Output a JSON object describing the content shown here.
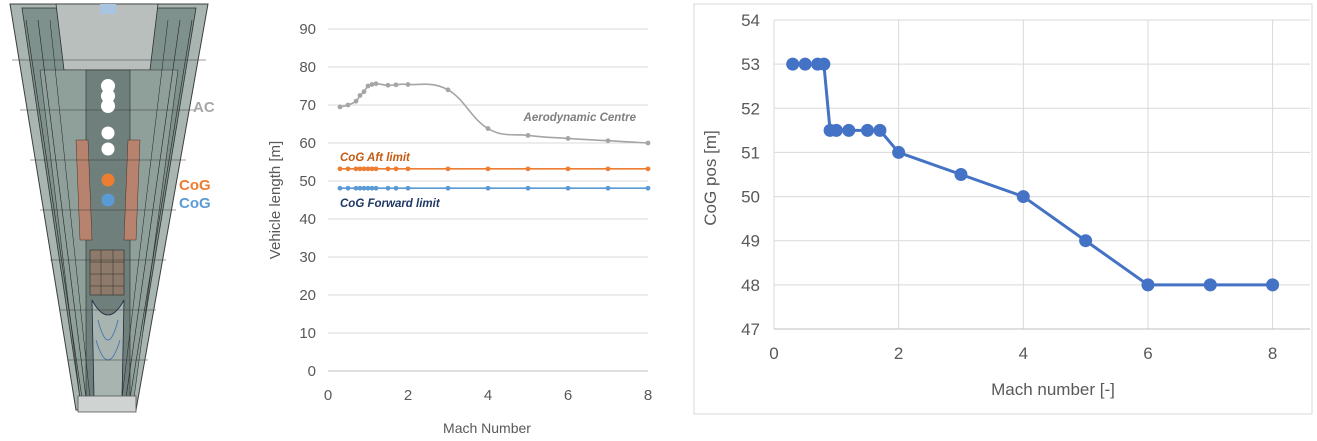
{
  "vehicle": {
    "labels": {
      "ac": "AC",
      "cog_aft": "CoG",
      "cog_fwd": "CoG"
    },
    "colors": {
      "ac": "#a6a6a6",
      "cog_aft": "#ed7d31",
      "cog_fwd": "#5b9bd5"
    }
  },
  "chart_data": [
    {
      "type": "line",
      "title": "",
      "xlabel": "Mach Number",
      "ylabel": "Vehicle length [m]",
      "xlim": [
        0,
        8
      ],
      "ylim": [
        0,
        90
      ],
      "xticks": [
        0,
        2,
        4,
        6,
        8
      ],
      "yticks": [
        0,
        10,
        20,
        30,
        40,
        50,
        60,
        70,
        80,
        90
      ],
      "grid": "horizontal",
      "legend": "none",
      "series": [
        {
          "name": "Aerodynamic Centre",
          "color": "#a5a5a5",
          "smooth": true,
          "x": [
            0.3,
            0.5,
            0.7,
            0.8,
            0.9,
            1.0,
            1.1,
            1.2,
            1.5,
            1.7,
            2.0,
            3.0,
            4.0,
            5.0,
            6.0,
            7.0,
            8.0
          ],
          "y": [
            69.5,
            70.0,
            71.0,
            72.5,
            73.5,
            75.0,
            75.4,
            75.6,
            75.2,
            75.3,
            75.4,
            74.0,
            63.8,
            62.0,
            61.2,
            60.6,
            60.0
          ]
        },
        {
          "name": "CoG Aft limit",
          "color": "#ed7d31",
          "smooth": false,
          "x": [
            0.3,
            0.5,
            0.7,
            0.8,
            0.9,
            1.0,
            1.1,
            1.2,
            1.5,
            1.7,
            2.0,
            3.0,
            4.0,
            5.0,
            6.0,
            7.0,
            8.0
          ],
          "y": [
            53.2,
            53.2,
            53.2,
            53.2,
            53.2,
            53.2,
            53.2,
            53.2,
            53.2,
            53.2,
            53.2,
            53.2,
            53.2,
            53.2,
            53.2,
            53.2,
            53.2
          ]
        },
        {
          "name": "CoG Forward limit",
          "color": "#5b9bd5",
          "smooth": false,
          "x": [
            0.3,
            0.5,
            0.7,
            0.8,
            0.9,
            1.0,
            1.1,
            1.2,
            1.5,
            1.7,
            2.0,
            3.0,
            4.0,
            5.0,
            6.0,
            7.0,
            8.0
          ],
          "y": [
            48.1,
            48.1,
            48.1,
            48.1,
            48.1,
            48.1,
            48.1,
            48.1,
            48.1,
            48.1,
            48.1,
            48.1,
            48.1,
            48.1,
            48.1,
            48.1,
            48.1
          ]
        }
      ],
      "annotations": [
        {
          "text": "Aerodynamic Centre",
          "series": 0,
          "color": "#7f7f7f"
        },
        {
          "text": "CoG Aft limit",
          "series": 1,
          "color": "#c55a11"
        },
        {
          "text": "CoG Forward limit",
          "series": 2,
          "color": "#1f3864"
        }
      ]
    },
    {
      "type": "line",
      "title": "",
      "xlabel": "Mach number [-]",
      "ylabel": "CoG pos [m]",
      "xlim": [
        0,
        8.6
      ],
      "ylim": [
        47,
        54
      ],
      "xticks": [
        0,
        2,
        4,
        6,
        8
      ],
      "yticks": [
        47,
        48,
        49,
        50,
        51,
        52,
        53,
        54
      ],
      "grid": "both",
      "legend": "none",
      "series": [
        {
          "name": "",
          "color": "#4472c4",
          "x": [
            0.3,
            0.5,
            0.7,
            0.8,
            0.9,
            1.0,
            1.2,
            1.5,
            1.7,
            2.0,
            3.0,
            4.0,
            5.0,
            6.0,
            7.0,
            8.0
          ],
          "y": [
            53.0,
            53.0,
            53.0,
            53.0,
            51.5,
            51.5,
            51.5,
            51.5,
            51.5,
            51.0,
            50.5,
            50.0,
            49.0,
            48.0,
            48.0,
            48.0
          ]
        }
      ]
    }
  ]
}
